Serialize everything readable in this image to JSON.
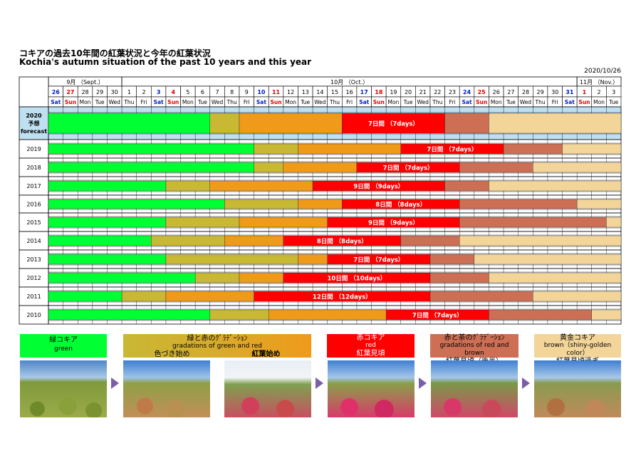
{
  "title_jp": "コキアの過去10年間の紅葉状況と今年の紅葉状況",
  "title_en": "Kochia's autumn situation of the past 10 years and this year",
  "date": "2020/10/26",
  "months": [
    {
      "label": "9月 （Sept.）",
      "days": 5
    },
    {
      "label": "10月 （Oct.）",
      "days": 31
    },
    {
      "label": "11月 （Nov.）",
      "days": 3
    }
  ],
  "days": [
    "26",
    "27",
    "28",
    "29",
    "30",
    "1",
    "2",
    "3",
    "4",
    "5",
    "6",
    "7",
    "8",
    "9",
    "10",
    "11",
    "12",
    "13",
    "14",
    "15",
    "16",
    "17",
    "18",
    "19",
    "20",
    "21",
    "22",
    "23",
    "24",
    "25",
    "26",
    "27",
    "28",
    "29",
    "30",
    "31",
    "1",
    "2",
    "3"
  ],
  "weekdays": [
    "Sat",
    "Sun",
    "Mon",
    "Tue",
    "Wed",
    "Thu",
    "Fri",
    "Sat",
    "Sun",
    "Mon",
    "Tue",
    "Wed",
    "Thu",
    "Fri",
    "Sat",
    "Sun",
    "Mon",
    "Tue",
    "Wed",
    "Thu",
    "Fri",
    "Sat",
    "Sun",
    "Mon",
    "Tue",
    "Wed",
    "Thu",
    "Fri",
    "Sat",
    "Sun",
    "Mon",
    "Tue",
    "Wed",
    "Thu",
    "Fri",
    "Sat",
    "Sun",
    "Mon",
    "Tue"
  ],
  "colors": {
    "green": "#00ff33",
    "olive": "#c8b834",
    "orange": "#f09a1a",
    "red": "#ff0000",
    "brown": "#cc6f55",
    "gold": "#f3d59a",
    "header_blue": "#bfe0f0",
    "sat": "#0020c0",
    "sun": "#e00000"
  },
  "rows": [
    {
      "label": "2020\n予想\nforecast",
      "forecast": true,
      "bars": [
        [
          "green",
          0,
          11
        ],
        [
          "olive",
          11,
          13
        ],
        [
          "orange",
          13,
          20
        ],
        [
          "red",
          20,
          27,
          "7日間 （7days）"
        ],
        [
          "brown",
          27,
          30
        ],
        [
          "gold",
          30,
          39
        ]
      ]
    },
    {
      "label": "2019",
      "bars": [
        [
          "green",
          0,
          14
        ],
        [
          "olive",
          14,
          17
        ],
        [
          "orange",
          17,
          24
        ],
        [
          "red",
          24,
          31,
          "7日間 （7days）"
        ],
        [
          "brown",
          31,
          35
        ],
        [
          "gold",
          35,
          39
        ]
      ]
    },
    {
      "label": "2018",
      "bars": [
        [
          "green",
          0,
          14
        ],
        [
          "olive",
          14,
          16
        ],
        [
          "orange",
          16,
          21
        ],
        [
          "red",
          21,
          28,
          "7日間 （7days）"
        ],
        [
          "brown",
          28,
          33
        ],
        [
          "gold",
          33,
          39
        ]
      ]
    },
    {
      "label": "2017",
      "bars": [
        [
          "green",
          0,
          8
        ],
        [
          "olive",
          8,
          11
        ],
        [
          "orange",
          11,
          18
        ],
        [
          "red",
          18,
          27,
          "9日間 （9days）"
        ],
        [
          "brown",
          27,
          30
        ],
        [
          "gold",
          30,
          39
        ]
      ]
    },
    {
      "label": "2016",
      "bars": [
        [
          "green",
          0,
          12
        ],
        [
          "olive",
          12,
          17
        ],
        [
          "orange",
          17,
          20
        ],
        [
          "red",
          20,
          28,
          "8日間 （8days）"
        ],
        [
          "brown",
          28,
          36
        ],
        [
          "gold",
          36,
          39
        ]
      ]
    },
    {
      "label": "2015",
      "bars": [
        [
          "green",
          0,
          8
        ],
        [
          "olive",
          8,
          13
        ],
        [
          "orange",
          13,
          19
        ],
        [
          "red",
          19,
          28,
          "9日間 （9days）"
        ],
        [
          "brown",
          28,
          38
        ],
        [
          "gold",
          38,
          39
        ]
      ]
    },
    {
      "label": "2014",
      "bars": [
        [
          "green",
          0,
          7
        ],
        [
          "olive",
          7,
          12
        ],
        [
          "orange",
          12,
          16
        ],
        [
          "red",
          16,
          24,
          "8日間 （8days）"
        ],
        [
          "brown",
          24,
          28
        ],
        [
          "gold",
          28,
          39
        ]
      ]
    },
    {
      "label": "2013",
      "bars": [
        [
          "green",
          0,
          8
        ],
        [
          "olive",
          8,
          17
        ],
        [
          "orange",
          17,
          19
        ],
        [
          "red",
          19,
          26,
          "7日間 （7days）"
        ],
        [
          "brown",
          26,
          29
        ],
        [
          "gold",
          29,
          39
        ]
      ]
    },
    {
      "label": "2012",
      "bars": [
        [
          "green",
          0,
          10
        ],
        [
          "olive",
          10,
          13
        ],
        [
          "orange",
          13,
          16
        ],
        [
          "red",
          16,
          26,
          "10日間 （10days）"
        ],
        [
          "brown",
          26,
          30
        ],
        [
          "gold",
          30,
          39
        ]
      ]
    },
    {
      "label": "2011",
      "bars": [
        [
          "green",
          0,
          5
        ],
        [
          "olive",
          5,
          8
        ],
        [
          "orange",
          8,
          14
        ],
        [
          "red",
          14,
          26,
          "12日間 （12days）"
        ],
        [
          "brown",
          26,
          33
        ],
        [
          "gold",
          33,
          39
        ]
      ]
    },
    {
      "label": "2010",
      "bars": [
        [
          "green",
          0,
          11
        ],
        [
          "olive",
          11,
          15
        ],
        [
          "orange",
          15,
          23
        ],
        [
          "red",
          23,
          30,
          "7日間 （7days）"
        ],
        [
          "brown",
          30,
          37
        ],
        [
          "gold",
          37,
          39
        ]
      ]
    }
  ],
  "legend": {
    "green_jp": "緑コキア",
    "green_en": "green",
    "grad1_jp": "緑と赤のｸﾞﾗﾃﾞｰｼｮﾝ",
    "grad1_en": "gradations of green and red",
    "grad1_sub1": "色づき始め",
    "grad1_sub2": "紅葉始め",
    "red_jp": "赤コキア",
    "red_en": "red",
    "red_sub": "紅葉見頃",
    "grad2_jp": "赤と茶のｸﾞﾗﾃﾞｰｼｮﾝ",
    "grad2_en": "gradations of red and brown",
    "grad2_sub": "紅葉見頃（後半）",
    "gold_jp": "黄金コキア",
    "gold_en": "brown（shiny-golden color）",
    "gold_sub": "紅葉見頃過ぎ"
  }
}
